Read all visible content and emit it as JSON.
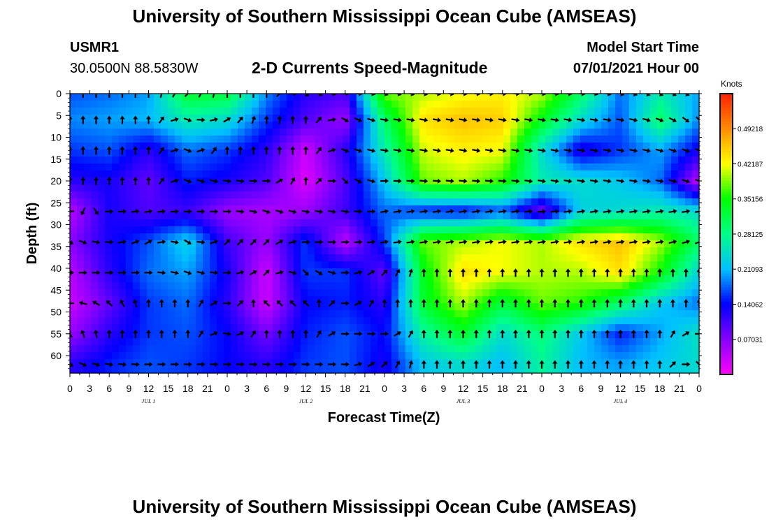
{
  "page": {
    "title_top": "University of Southern Mississippi Ocean Cube (AMSEAS)",
    "title_bottom": "University of Southern Mississippi Ocean Cube (AMSEAS)",
    "station": "USMR1",
    "location": "30.0500N  88.5830W",
    "subtitle": "2-D Currents Speed-Magnitude",
    "model_start_label": "Model Start Time",
    "model_start_value": "07/01/2021 Hour 00"
  },
  "colors": {
    "scale": [
      "#ff00ff",
      "#8800ff",
      "#0000ff",
      "#00c0ff",
      "#00ff88",
      "#00ff00",
      "#ffff00",
      "#ff8c00",
      "#ff2000"
    ],
    "arrow": "#000000"
  },
  "chart_data": {
    "type": "heatmap",
    "title": "2-D Currents Speed-Magnitude",
    "xlabel": "Forecast Time(Z)",
    "ylabel": "Depth (ft)",
    "x_tick_labels": [
      "0",
      "3",
      "6",
      "9",
      "12",
      "15",
      "18",
      "21",
      "0",
      "3",
      "6",
      "9",
      "12",
      "15",
      "18",
      "21",
      "0",
      "3",
      "6",
      "9",
      "12",
      "15",
      "18",
      "21",
      "0",
      "3",
      "6",
      "9",
      "12",
      "15",
      "18",
      "21",
      "0"
    ],
    "date_labels": [
      "JUL 1",
      "JUL 2",
      "JUL 3",
      "JUL 4"
    ],
    "date_label_tick_index": [
      4,
      12,
      20,
      28
    ],
    "y_tick_labels": [
      "0",
      "5",
      "10",
      "15",
      "20",
      "25",
      "30",
      "35",
      "40",
      "45",
      "50",
      "55",
      "60"
    ],
    "xlim_hours": [
      0,
      96
    ],
    "ylim_ft": [
      0,
      64
    ],
    "colorbar": {
      "unit_label": "Knots",
      "range": [
        0,
        0.5624
      ],
      "tick_labels": [
        "0.49218",
        "0.42187",
        "0.35156",
        "0.28125",
        "0.21093",
        "0.14062",
        "0.07031"
      ],
      "tick_values": [
        0.49218,
        0.42187,
        0.35156,
        0.28125,
        0.21093,
        0.14062,
        0.07031
      ]
    },
    "speed_grid": {
      "hours": [
        0,
        6,
        12,
        18,
        24,
        30,
        36,
        42,
        48,
        54,
        60,
        66,
        72,
        78,
        84,
        90,
        96
      ],
      "depths_ft": [
        0,
        6,
        13,
        20,
        27,
        34,
        41,
        48,
        55,
        62
      ],
      "values": [
        [
          0.17,
          0.18,
          0.2,
          0.33,
          0.32,
          0.19,
          0.12,
          0.1,
          0.38,
          0.4,
          0.42,
          0.43,
          0.4,
          0.3,
          0.18,
          0.26,
          0.2
        ],
        [
          0.19,
          0.2,
          0.21,
          0.26,
          0.24,
          0.16,
          0.1,
          0.06,
          0.3,
          0.44,
          0.46,
          0.45,
          0.34,
          0.24,
          0.17,
          0.3,
          0.19
        ],
        [
          0.16,
          0.17,
          0.12,
          0.18,
          0.16,
          0.12,
          0.03,
          0.12,
          0.26,
          0.41,
          0.43,
          0.42,
          0.24,
          0.12,
          0.16,
          0.2,
          0.13
        ],
        [
          0.12,
          0.13,
          0.09,
          0.15,
          0.13,
          0.1,
          0.02,
          0.1,
          0.22,
          0.38,
          0.4,
          0.36,
          0.26,
          0.24,
          0.22,
          0.18,
          0.04
        ],
        [
          0.04,
          0.13,
          0.1,
          0.11,
          0.06,
          0.05,
          0.06,
          0.11,
          0.18,
          0.15,
          0.14,
          0.17,
          0.08,
          0.23,
          0.24,
          0.26,
          0.24
        ],
        [
          0.07,
          0.13,
          0.17,
          0.23,
          0.11,
          0.06,
          0.16,
          0.04,
          0.16,
          0.38,
          0.4,
          0.42,
          0.4,
          0.44,
          0.46,
          0.4,
          0.3
        ],
        [
          0.04,
          0.12,
          0.18,
          0.2,
          0.13,
          0.03,
          0.16,
          0.16,
          0.09,
          0.34,
          0.44,
          0.42,
          0.4,
          0.4,
          0.44,
          0.35,
          0.23
        ],
        [
          0.03,
          0.09,
          0.16,
          0.18,
          0.12,
          0.03,
          0.14,
          0.15,
          0.12,
          0.33,
          0.4,
          0.32,
          0.38,
          0.36,
          0.3,
          0.22,
          0.18
        ],
        [
          0.06,
          0.12,
          0.16,
          0.17,
          0.14,
          0.08,
          0.15,
          0.17,
          0.14,
          0.27,
          0.33,
          0.24,
          0.29,
          0.22,
          0.15,
          0.2,
          0.25
        ],
        [
          0.12,
          0.15,
          0.17,
          0.16,
          0.14,
          0.12,
          0.16,
          0.17,
          0.13,
          0.22,
          0.24,
          0.21,
          0.27,
          0.21,
          0.2,
          0.22,
          0.24
        ]
      ]
    },
    "vectors": {
      "hour_step": 2,
      "depths_ft": [
        0,
        6,
        13,
        20,
        27,
        34,
        41,
        48,
        55,
        62
      ],
      "direction_deg_by_hour_knots": [
        0,
        6,
        12,
        18,
        24,
        30,
        36,
        42,
        48,
        54,
        60,
        66,
        72,
        78,
        84,
        90,
        96
      ],
      "direction_deg_rows": [
        [
          0,
          0,
          0,
          45,
          0,
          0,
          135,
          90,
          110,
          105,
          100,
          95,
          100,
          100,
          110,
          120,
          120
        ],
        [
          0,
          0,
          0,
          110,
          60,
          0,
          0,
          120,
          100,
          100,
          100,
          100,
          100,
          100,
          100,
          110,
          135
        ],
        [
          0,
          0,
          0,
          110,
          0,
          0,
          0,
          110,
          100,
          100,
          100,
          100,
          100,
          100,
          100,
          105,
          110
        ],
        [
          0,
          0,
          0,
          110,
          100,
          90,
          0,
          135,
          90,
          95,
          95,
          95,
          100,
          100,
          100,
          100,
          110
        ],
        [
          265,
          90,
          80,
          90,
          90,
          110,
          100,
          100,
          80,
          80,
          80,
          80,
          85,
          80,
          80,
          80,
          80
        ],
        [
          120,
          90,
          60,
          120,
          45,
          45,
          90,
          90,
          80,
          80,
          80,
          80,
          80,
          80,
          80,
          80,
          70
        ],
        [
          90,
          90,
          90,
          110,
          90,
          45,
          135,
          90,
          45,
          0,
          0,
          0,
          0,
          0,
          0,
          0,
          0
        ],
        [
          270,
          315,
          0,
          0,
          90,
          315,
          315,
          90,
          0,
          0,
          0,
          0,
          0,
          0,
          0,
          0,
          0
        ],
        [
          330,
          0,
          0,
          0,
          100,
          0,
          0,
          90,
          90,
          0,
          0,
          0,
          0,
          0,
          0,
          0,
          90
        ],
        [
          120,
          100,
          90,
          90,
          90,
          90,
          90,
          90,
          45,
          0,
          0,
          0,
          0,
          0,
          0,
          0,
          135
        ]
      ]
    }
  }
}
